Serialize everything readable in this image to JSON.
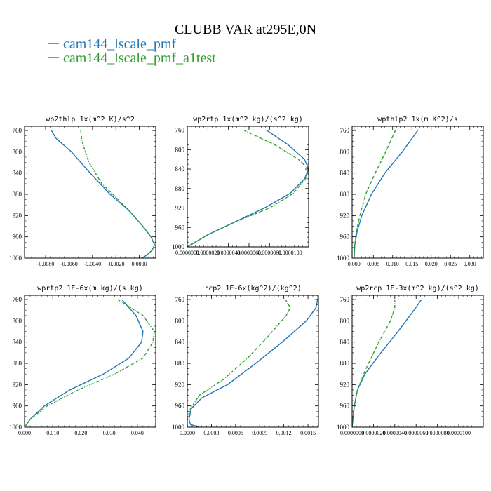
{
  "title": "CLUBB VAR at295E,0N",
  "legend": [
    {
      "label": "cam144_lscale_pmf",
      "color": "#1f77b4"
    },
    {
      "label": "cam144_lscale_pmf_a1test",
      "color": "#2ca02c"
    }
  ],
  "chart_data": [
    {
      "type": "line",
      "title": "wp2thlp  1x(m^2 K)/s^2",
      "xlim": [
        -0.0098,
        0.0014
      ],
      "ylim": [
        1000,
        752
      ],
      "xticks": [
        -0.008,
        -0.006,
        -0.004,
        -0.002,
        0.0
      ],
      "xtick_labels": [
        "-0.0080",
        "-0.0060",
        "-0.0040",
        "-0.0020",
        "0.0000"
      ],
      "yticks": [
        760,
        800,
        840,
        880,
        920,
        960,
        1000
      ],
      "series": [
        {
          "x": [
            -0.0075,
            -0.0071,
            -0.0058,
            -0.0042,
            -0.0025,
            -0.0009,
            0.0003,
            0.001,
            0.0013,
            0.0011,
            0.0006,
            0.0002
          ],
          "y": [
            760,
            775,
            800,
            840,
            880,
            910,
            940,
            960,
            975,
            985,
            995,
            1000
          ]
        },
        {
          "x": [
            -0.005,
            -0.0049,
            -0.0043,
            -0.0032,
            -0.0018,
            -0.0007,
            0.0003,
            0.001,
            0.0013,
            0.0011,
            0.0006,
            0.0002
          ],
          "y": [
            760,
            780,
            820,
            860,
            890,
            915,
            940,
            960,
            975,
            985,
            995,
            1000
          ]
        }
      ]
    },
    {
      "type": "line",
      "title": "wp2rtp  1x(m^2 kg)/(s^2 kg)",
      "xlim": [
        0.0,
        1.18e-05
      ],
      "ylim": [
        1000,
        752
      ],
      "xticks": [
        0.0,
        2e-06,
        4e-06,
        6e-06,
        8e-06,
        1e-05
      ],
      "xtick_labels": [
        "0.0000000",
        "0.0000020",
        "0.0000040",
        "0.0000060",
        "0.0000080",
        "0.0000100"
      ],
      "yticks": [
        760,
        800,
        840,
        880,
        920,
        960,
        1000
      ],
      "series": [
        {
          "x": [
            7.7e-06,
            9.8e-06,
            1.14e-05,
            1.18e-05,
            1.14e-05,
            1e-05,
            7.5e-06,
            4.5e-06,
            2e-06,
            0.0
          ],
          "y": [
            760,
            790,
            820,
            840,
            860,
            890,
            920,
            950,
            975,
            1000
          ]
        },
        {
          "x": [
            5.5e-06,
            8.5e-06,
            1.08e-05,
            1.18e-05,
            1.15e-05,
            1.03e-05,
            8e-06,
            4.5e-06,
            2e-06,
            0.0
          ],
          "y": [
            760,
            790,
            820,
            840,
            860,
            890,
            920,
            950,
            975,
            1000
          ]
        }
      ]
    },
    {
      "type": "line",
      "title": "wpthlp2  1x(m K^2)/s",
      "xlim": [
        -0.0005,
        0.0335
      ],
      "ylim": [
        1000,
        752
      ],
      "xticks": [
        0.0,
        0.005,
        0.01,
        0.015,
        0.02,
        0.025,
        0.03
      ],
      "xtick_labels": [
        "0.000",
        "0.005",
        "0.010",
        "0.015",
        "0.020",
        "0.025",
        "0.030"
      ],
      "yticks": [
        760,
        800,
        840,
        880,
        920,
        960,
        1000
      ],
      "series": [
        {
          "x": [
            0.0165,
            0.0125,
            0.008,
            0.0045,
            0.002,
            0.0008,
            0.0002,
            0.0
          ],
          "y": [
            760,
            800,
            840,
            880,
            920,
            950,
            975,
            1000
          ]
        },
        {
          "x": [
            0.0107,
            0.0082,
            0.0055,
            0.003,
            0.0015,
            0.0006,
            0.0002,
            0.0
          ],
          "y": [
            760,
            800,
            840,
            880,
            920,
            950,
            975,
            1000
          ]
        }
      ]
    },
    {
      "type": "line",
      "title": "wprtp2  1E-6x(m kg)/(s kg)",
      "xlim": [
        0.0,
        0.0465
      ],
      "ylim": [
        1000,
        752
      ],
      "xticks": [
        0.0,
        0.01,
        0.02,
        0.03,
        0.04
      ],
      "xtick_labels": [
        "0.000",
        "0.010",
        "0.020",
        "0.030",
        "0.040"
      ],
      "yticks": [
        760,
        800,
        840,
        880,
        920,
        960,
        1000
      ],
      "series": [
        {
          "x": [
            0.0345,
            0.0395,
            0.042,
            0.0415,
            0.037,
            0.028,
            0.016,
            0.007,
            0.002,
            0.0
          ],
          "y": [
            760,
            790,
            820,
            840,
            870,
            900,
            930,
            960,
            985,
            1000
          ]
        },
        {
          "x": [
            0.033,
            0.042,
            0.046,
            0.0455,
            0.042,
            0.032,
            0.019,
            0.008,
            0.002,
            0.0
          ],
          "y": [
            760,
            790,
            820,
            840,
            870,
            900,
            930,
            960,
            985,
            1000
          ]
        }
      ]
    },
    {
      "type": "line",
      "title": "rcp2  1E-6x(kg^2)/(kg^2)",
      "xlim": [
        0.0,
        0.00163
      ],
      "ylim": [
        1000,
        752
      ],
      "xticks": [
        0.0,
        0.0003,
        0.0006,
        0.0009,
        0.0012,
        0.0015
      ],
      "xtick_labels": [
        "0.0000",
        "0.0003",
        "0.0006",
        "0.0009",
        "0.0012",
        "0.0015"
      ],
      "yticks": [
        760,
        800,
        840,
        880,
        920,
        960,
        1000
      ],
      "series": [
        {
          "x": [
            0.00163,
            0.0016,
            0.00148,
            0.00118,
            0.00085,
            0.0005,
            0.00018,
            5e-05,
            2e-05,
            4e-05,
            0.00015
          ],
          "y": [
            752,
            775,
            800,
            840,
            880,
            920,
            945,
            965,
            985,
            995,
            1000
          ]
        },
        {
          "x": [
            0.00122,
            0.00128,
            0.00123,
            0.001,
            0.00075,
            0.00045,
            0.00015,
            4e-05,
            0.0,
            0.0
          ],
          "y": [
            760,
            775,
            790,
            830,
            870,
            910,
            940,
            965,
            985,
            1000
          ]
        }
      ]
    },
    {
      "type": "line",
      "title": "wp2rcp  1E-3x(m^2 kg)/(s^2 kg)",
      "xlim": [
        0.0,
        1.23e-05
      ],
      "ylim": [
        1000,
        752
      ],
      "xticks": [
        0.0,
        2e-06,
        4e-06,
        6e-06,
        8e-06,
        1e-05
      ],
      "xtick_labels": [
        "0.0000000",
        "0.0000020",
        "0.0000040",
        "0.0000060",
        "0.0000080",
        "0.0000100"
      ],
      "yticks": [
        760,
        800,
        840,
        880,
        920,
        960,
        1000
      ],
      "series": [
        {
          "x": [
            6.5e-06,
            5.8e-06,
            4.3e-06,
            2.7e-06,
            1.2e-06,
            5e-07,
            2e-07,
            0.0
          ],
          "y": [
            760,
            780,
            820,
            860,
            900,
            930,
            960,
            1000
          ]
        },
        {
          "x": [
            4e-06,
            4e-06,
            3.6e-06,
            2.5e-06,
            1.3e-06,
            5e-07,
            2e-07,
            0.0
          ],
          "y": [
            760,
            775,
            800,
            840,
            890,
            930,
            960,
            1000
          ]
        }
      ]
    }
  ]
}
